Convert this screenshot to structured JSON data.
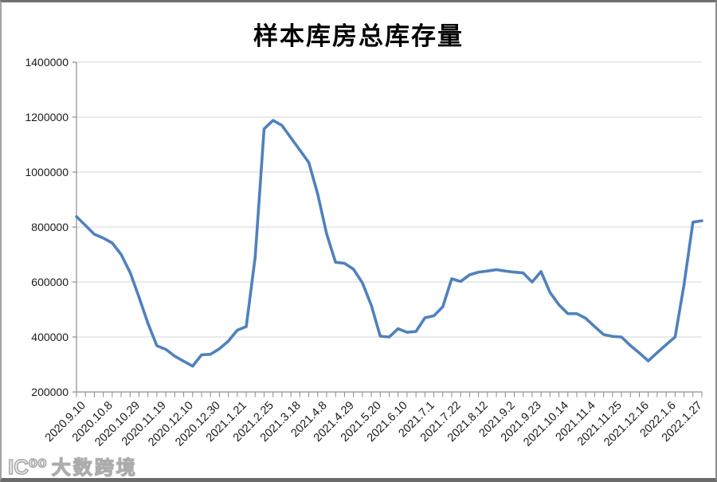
{
  "title": "样本库房总库存量",
  "watermark": {
    "logo": "IC⁰⁰",
    "text": "大数跨境"
  },
  "chart_data": {
    "type": "line",
    "title": "样本库房总库存量",
    "xlabel": "",
    "ylabel": "",
    "ylim": [
      200000,
      1400000
    ],
    "ytick_step": 200000,
    "y_ticks": [
      200000,
      400000,
      600000,
      800000,
      1000000,
      1200000,
      1400000
    ],
    "grid": "horizontal-only",
    "legend": "none",
    "x_label_rotation": -45,
    "label_interval": 3,
    "x_labels": [
      "2020.9.10",
      "2020.10.8",
      "2020.10.29",
      "2020.11.19",
      "2020.12.10",
      "2020.12.30",
      "2021.1.21",
      "2021.2.25",
      "2021.3.18",
      "2021.4.8",
      "2021.4.29",
      "2021.5.20",
      "2021.6.10",
      "2021.7.1",
      "2021.7.22",
      "2021.8.12",
      "2021.9.2",
      "2021.9.23",
      "2021.10.14",
      "2021.11.4",
      "2021.11.25",
      "2021.12.16",
      "2022.1.6",
      "2022.1.27"
    ],
    "values": [
      838000,
      806000,
      774000,
      760000,
      742000,
      700000,
      635000,
      545000,
      450000,
      368000,
      355000,
      330000,
      312000,
      294000,
      335000,
      337000,
      357000,
      385000,
      425000,
      438000,
      690000,
      1157000,
      1188000,
      1170000,
      1125000,
      1080000,
      1035000,
      920000,
      775000,
      672000,
      668000,
      647000,
      597000,
      515000,
      403000,
      400000,
      430000,
      417000,
      420000,
      470000,
      477000,
      510000,
      612000,
      602000,
      626000,
      636000,
      640000,
      645000,
      640000,
      636000,
      633000,
      600000,
      638000,
      562000,
      517000,
      485000,
      485000,
      468000,
      438000,
      409000,
      402000,
      400000,
      369000,
      342000,
      313000,
      343000,
      372000,
      400000,
      590000,
      818000,
      823000
    ],
    "colors": {
      "line": "#4F81BD",
      "grid": "#D6D6D6",
      "axis": "#8C8C8C",
      "text": "#1A1A1A",
      "background": "#FFFFFF"
    }
  }
}
